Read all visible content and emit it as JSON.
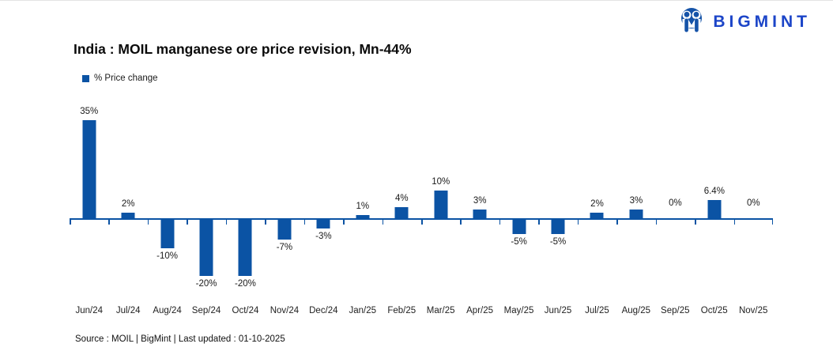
{
  "logo": {
    "brand": "BIGMINT",
    "icon": "bigmint-logo-icon",
    "text_color": "#1C45C8",
    "icon_color": "#1553A8"
  },
  "title": "India : MOIL manganese ore price revision, Mn-44%",
  "legend": {
    "label": "% Price change",
    "color": "#0B53A4"
  },
  "chart_data": {
    "type": "bar",
    "title": "India : MOIL manganese ore price revision, Mn-44%",
    "series_name": "% Price change",
    "categories": [
      "Jun/24",
      "Jul/24",
      "Aug/24",
      "Sep/24",
      "Oct/24",
      "Nov/24",
      "Dec/24",
      "Jan/25",
      "Feb/25",
      "Mar/25",
      "Apr/25",
      "May/25",
      "Jun/25",
      "Jul/25",
      "Aug/25",
      "Sep/25",
      "Oct/25",
      "Nov/25"
    ],
    "values": [
      35,
      2,
      -10,
      -20,
      -20,
      -7,
      -3,
      1,
      4,
      10,
      3,
      -5,
      -5,
      2,
      3,
      0,
      6.4,
      0
    ],
    "value_labels": [
      "35%",
      "2%",
      "-10%",
      "-20%",
      "-20%",
      "-7%",
      "-3%",
      "1%",
      "4%",
      "10%",
      "3%",
      "-5%",
      "-5%",
      "2%",
      "3%",
      "0%",
      "6.4%",
      "0%"
    ],
    "bar_color": "#0B53A4",
    "axis_color": "#0B53A4",
    "ylim": [
      -25,
      38
    ],
    "grid": false,
    "legend_position": "top-left",
    "data_labels": true,
    "xlabel": "",
    "ylabel": ""
  },
  "footer": {
    "source": "Source : MOIL | BigMint | Last updated : 01-10-2025"
  }
}
